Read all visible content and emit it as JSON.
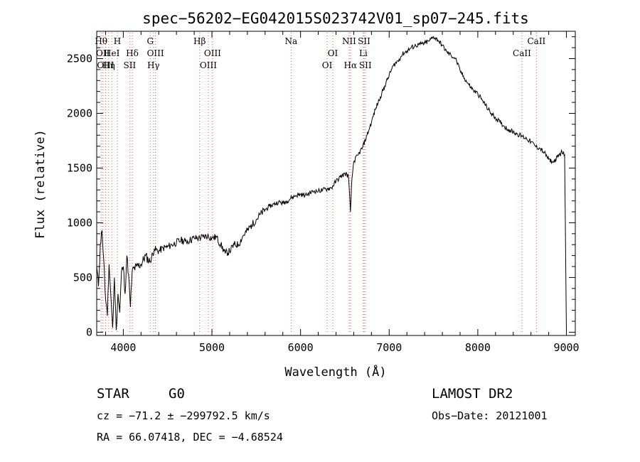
{
  "info": {
    "object_class": "STAR",
    "subclass": "G0",
    "survey": "LAMOST DR2",
    "redshift": "cz = −71.2 ± −299792.5 km/s",
    "obs_date": "Obs−Date: 20121001",
    "coords": "RA =  66.07418, DEC =  −4.68524"
  },
  "chart_data": {
    "type": "line",
    "title": "spec−56202−EG042015S023742V01_sp07−245.fits",
    "xlabel": "Wavelength (Å)",
    "ylabel": "Flux (relative)",
    "xlim": [
      3700,
      9100
    ],
    "ylim": [
      -30,
      2750
    ],
    "grid": false,
    "line_color": "#000000",
    "marker_color": "#e06060",
    "x_ticks": [
      {
        "value": 4000,
        "label": "4000"
      },
      {
        "value": 5000,
        "label": "5000"
      },
      {
        "value": 6000,
        "label": "6000"
      },
      {
        "value": 7000,
        "label": "7000"
      },
      {
        "value": 8000,
        "label": "8000"
      },
      {
        "value": 9000,
        "label": "9000"
      }
    ],
    "y_ticks": [
      {
        "value": 0,
        "label": "0"
      },
      {
        "value": 500,
        "label": "500"
      },
      {
        "value": 1000,
        "label": "1000"
      },
      {
        "value": 1500,
        "label": "1500"
      },
      {
        "value": 2000,
        "label": "2000"
      },
      {
        "value": 2500,
        "label": "2500"
      }
    ],
    "spectrum": {
      "x": [
        3700,
        3720,
        3740,
        3760,
        3780,
        3800,
        3820,
        3840,
        3860,
        3880,
        3900,
        3920,
        3940,
        3960,
        3980,
        4000,
        4020,
        4040,
        4060,
        4080,
        4100,
        4150,
        4200,
        4250,
        4300,
        4350,
        4400,
        4450,
        4500,
        4550,
        4600,
        4650,
        4700,
        4750,
        4800,
        4850,
        4900,
        4950,
        5000,
        5050,
        5100,
        5150,
        5200,
        5250,
        5300,
        5350,
        5400,
        5450,
        5500,
        5550,
        5600,
        5650,
        5700,
        5750,
        5800,
        5850,
        5900,
        5950,
        6000,
        6050,
        6100,
        6150,
        6200,
        6250,
        6300,
        6350,
        6400,
        6450,
        6500,
        6540,
        6563,
        6580,
        6600,
        6650,
        6700,
        6750,
        6800,
        6850,
        6900,
        6950,
        7000,
        7050,
        7100,
        7150,
        7200,
        7250,
        7300,
        7350,
        7400,
        7450,
        7500,
        7550,
        7600,
        7650,
        7700,
        7750,
        7800,
        7850,
        7900,
        7950,
        8000,
        8050,
        8100,
        8150,
        8200,
        8250,
        8300,
        8350,
        8400,
        8450,
        8500,
        8550,
        8600,
        8650,
        8700,
        8750,
        8800,
        8850,
        8900,
        8950,
        8980,
        9000
      ],
      "y": [
        600,
        420,
        800,
        930,
        650,
        300,
        150,
        620,
        330,
        40,
        500,
        20,
        350,
        180,
        560,
        600,
        350,
        700,
        520,
        230,
        560,
        600,
        620,
        700,
        640,
        760,
        740,
        770,
        780,
        800,
        820,
        840,
        830,
        840,
        860,
        860,
        870,
        880,
        860,
        870,
        800,
        720,
        740,
        800,
        800,
        880,
        930,
        980,
        1030,
        1080,
        1120,
        1150,
        1170,
        1190,
        1180,
        1200,
        1230,
        1250,
        1260,
        1250,
        1270,
        1290,
        1290,
        1300,
        1310,
        1320,
        1380,
        1420,
        1450,
        1430,
        1100,
        1400,
        1560,
        1620,
        1690,
        1800,
        1920,
        2050,
        2150,
        2250,
        2350,
        2440,
        2480,
        2540,
        2570,
        2600,
        2620,
        2630,
        2640,
        2660,
        2700,
        2670,
        2620,
        2560,
        2530,
        2500,
        2390,
        2320,
        2260,
        2210,
        2180,
        2120,
        2060,
        2000,
        1960,
        1920,
        1880,
        1850,
        1830,
        1810,
        1790,
        1770,
        1740,
        1700,
        1680,
        1640,
        1580,
        1550,
        1600,
        1650,
        1620,
        0
      ]
    },
    "lines": [
      {
        "x": 3750,
        "label": "Hθ",
        "row": 1
      },
      {
        "x": 3770,
        "label": "OII",
        "row": 2
      },
      {
        "x": 3800,
        "label": "OIII",
        "row": 3
      },
      {
        "x": 3835,
        "label": "Hη",
        "row": 3
      },
      {
        "x": 3870,
        "label": "HeI",
        "row": 2
      },
      {
        "x": 3933,
        "label": "H",
        "row": 1
      },
      {
        "x": 4101,
        "label": "Hδ",
        "row": 2
      },
      {
        "x": 4072,
        "label": "SII",
        "row": 3
      },
      {
        "x": 4304,
        "label": "G",
        "row": 1
      },
      {
        "x": 4340,
        "label": "Hγ",
        "row": 3
      },
      {
        "x": 4363,
        "label": "OIII",
        "row": 2
      },
      {
        "x": 4861,
        "label": "Hβ",
        "row": 1
      },
      {
        "x": 4959,
        "label": "OIII",
        "row": 3
      },
      {
        "x": 5007,
        "label": "OIII",
        "row": 2
      },
      {
        "x": 5893,
        "label": "Na",
        "row": 1
      },
      {
        "x": 6300,
        "label": "OI",
        "row": 3
      },
      {
        "x": 6364,
        "label": "OI",
        "row": 2
      },
      {
        "x": 6548,
        "label": "NII",
        "row": 1
      },
      {
        "x": 6563,
        "label": "Hα",
        "row": 3
      },
      {
        "x": 6717,
        "label": "SII",
        "row": 1
      },
      {
        "x": 6708,
        "label": "Li",
        "row": 2
      },
      {
        "x": 6731,
        "label": "SII",
        "row": 3
      },
      {
        "x": 8498,
        "label": "CaII",
        "row": 2
      },
      {
        "x": 8662,
        "label": "CaII",
        "row": 1
      }
    ]
  }
}
